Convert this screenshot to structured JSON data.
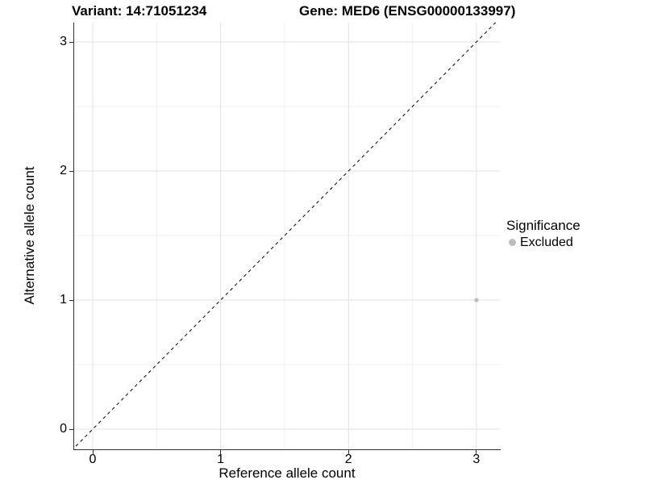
{
  "chart_data": {
    "type": "scatter",
    "title_left": "Variant: 14:71051234",
    "title_right": "Gene: MED6 (ENSG00000133997)",
    "xlabel": "Reference allele count",
    "ylabel": "Alternative allele count",
    "x_ticks": [
      0,
      1,
      2,
      3
    ],
    "y_ticks": [
      0,
      1,
      2,
      3
    ],
    "x_minor": [
      0.5,
      1.5,
      2.5
    ],
    "y_minor": [
      0.5,
      1.5,
      2.5
    ],
    "xlim": [
      -0.145,
      3.19
    ],
    "ylim": [
      -0.156,
      3.15
    ],
    "grid": "major+minor",
    "identity_line": {
      "slope": 1,
      "intercept": 0,
      "style": "dashed",
      "color": "#000000"
    },
    "series": [
      {
        "name": "Excluded",
        "color": "#bdbdbd",
        "points": [
          {
            "x": 3,
            "y": 1
          }
        ]
      }
    ],
    "legend": {
      "title": "Significance",
      "position": "right",
      "entries": [
        {
          "label": "Excluded",
          "color": "#bdbdbd"
        }
      ]
    },
    "colors": {
      "grid_major": "#e3e3e3",
      "grid_minor": "#f1f1f1",
      "axis_line": "#333333",
      "tick": "#333333",
      "text": "#000000"
    }
  }
}
